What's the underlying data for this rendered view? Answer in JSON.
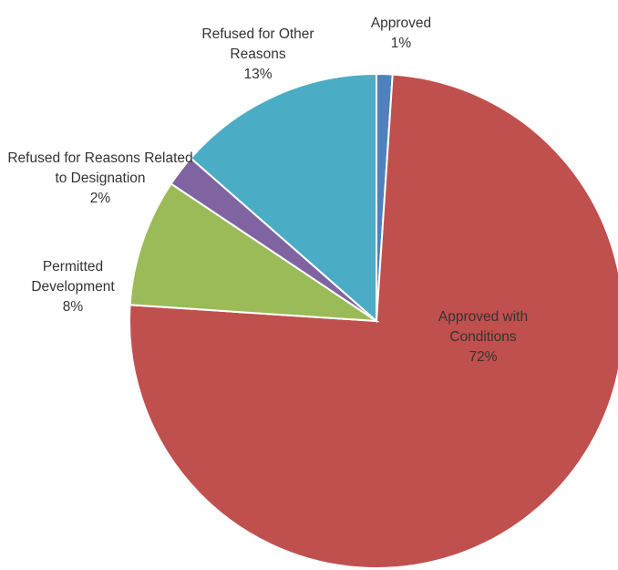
{
  "chart_data": {
    "type": "pie",
    "categories": [
      "Approved",
      "Approved with Conditions",
      "Permitted Development",
      "Refused for Reasons Related to Designation",
      "Refused for Other Reasons"
    ],
    "values": [
      1,
      72,
      8,
      2,
      13
    ],
    "value_labels": [
      "1%",
      "72%",
      "8%",
      "2%",
      "13%"
    ],
    "colors": [
      "#4f81bd",
      "#c0504d",
      "#9bbb59",
      "#8064a2",
      "#4bacc6"
    ]
  }
}
